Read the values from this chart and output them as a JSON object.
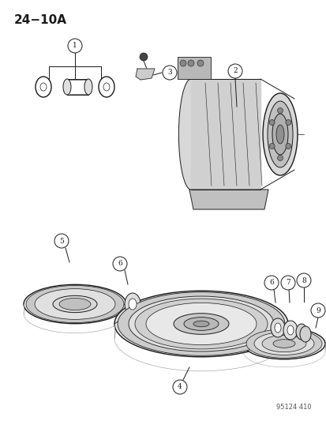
{
  "title": "24−10A",
  "footer": "95124 410",
  "bg_color": "#ffffff",
  "line_color": "#1a1a1a",
  "font_size_title": 11,
  "font_size_callout": 7,
  "font_size_footer": 6
}
